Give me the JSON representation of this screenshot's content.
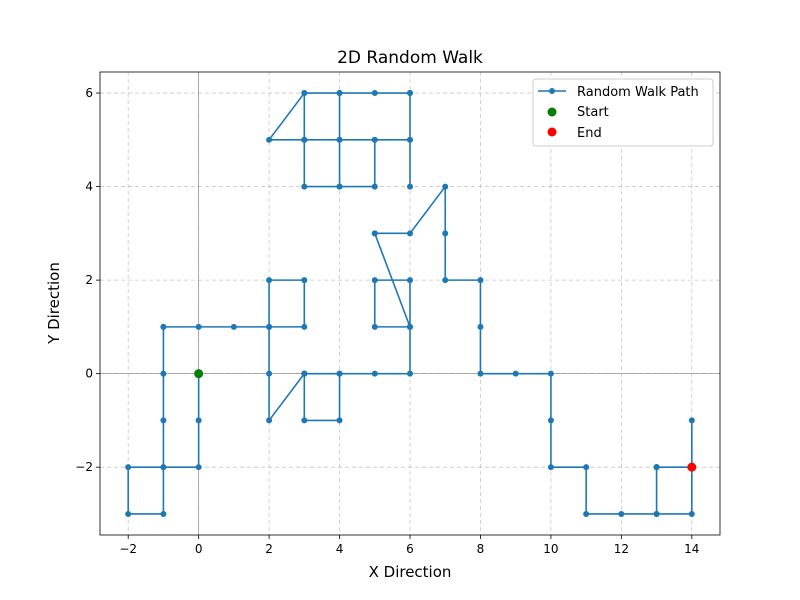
{
  "chart_data": {
    "type": "line",
    "title": "2D Random Walk",
    "xlabel": "X Direction",
    "ylabel": "Y Direction",
    "xlim": [
      -2.8,
      14.8
    ],
    "ylim": [
      -3.45,
      6.45
    ],
    "xticks": [
      -2,
      0,
      2,
      4,
      6,
      8,
      10,
      12,
      14
    ],
    "yticks": [
      -2,
      0,
      2,
      4,
      6
    ],
    "grid": true,
    "legend_position": "upper right",
    "series": [
      {
        "name": "Random Walk Path",
        "color": "#1f77b4",
        "x": [
          0,
          0,
          0,
          -1,
          -1,
          -2,
          -2,
          -1,
          -1,
          -1,
          -1,
          -1,
          0,
          1,
          2,
          3,
          3,
          2,
          2,
          2,
          2,
          3,
          3,
          3,
          4,
          4,
          3,
          3,
          4,
          5,
          6,
          6,
          5,
          5,
          6,
          6,
          6,
          5,
          5,
          6,
          7,
          7,
          7,
          8,
          8,
          8,
          9,
          10,
          10,
          10,
          11,
          11,
          12,
          13,
          13,
          13,
          14,
          14,
          14,
          14,
          13,
          13,
          14
        ],
        "y": [
          0,
          -1,
          -2,
          -2,
          -3,
          -3,
          -2,
          -2,
          -1,
          0,
          1,
          1,
          1,
          1,
          1,
          1,
          2,
          2,
          1,
          0,
          -1,
          0,
          0,
          -1,
          -1,
          0,
          0,
          0,
          0,
          0,
          0,
          1,
          1,
          2,
          2,
          1,
          1,
          3,
          3,
          3,
          4,
          3,
          2,
          2,
          1,
          0,
          0,
          0,
          -1,
          -2,
          -2,
          -3,
          -3,
          -3,
          -2,
          -2,
          -2,
          -1,
          -2,
          -3,
          -3,
          -2,
          -2
        ]
      },
      {
        "name": "Random Walk Path",
        "color": "#1f77b4",
        "x": [
          6,
          6,
          6,
          5,
          4,
          4,
          4,
          5,
          5,
          4,
          3,
          3,
          2,
          3,
          3,
          4,
          4,
          3,
          3,
          4,
          5,
          6,
          6
        ],
        "y": [
          4,
          5,
          6,
          6,
          6,
          5,
          4,
          4,
          5,
          5,
          5,
          6,
          5,
          5,
          4,
          4,
          6,
          6,
          5,
          5,
          5,
          5,
          6
        ]
      }
    ],
    "markers": [
      {
        "name": "Start",
        "x": 0,
        "y": 0,
        "color": "#008000"
      },
      {
        "name": "End",
        "x": 14,
        "y": -2,
        "color": "#ff0000"
      }
    ]
  }
}
